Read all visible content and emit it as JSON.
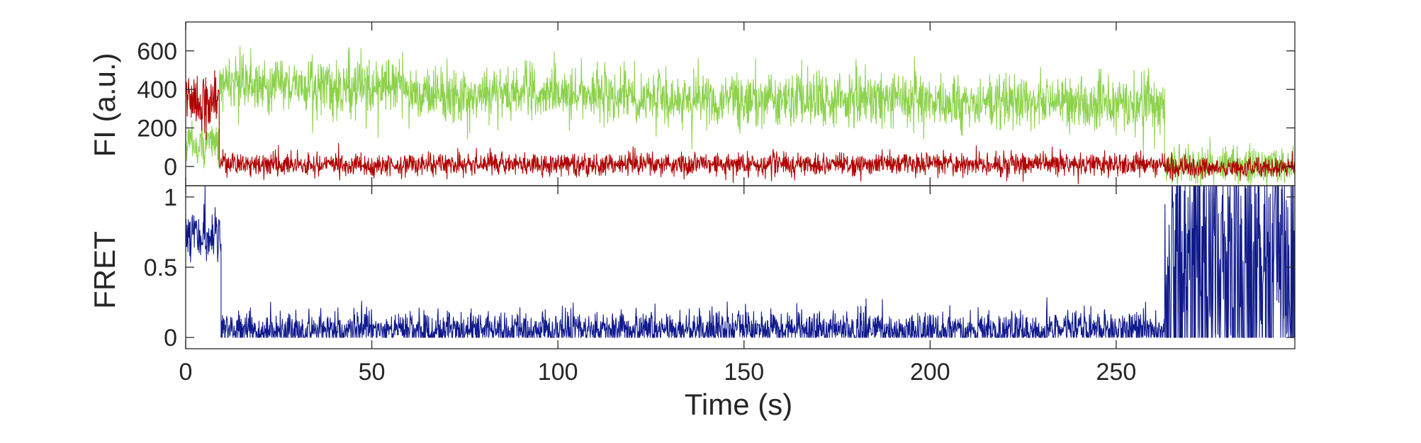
{
  "chart_data": [
    {
      "type": "line",
      "title": "",
      "xlabel": "",
      "ylabel": "FI (a.u.)",
      "xlim": [
        0,
        298
      ],
      "ylim": [
        -100,
        750
      ],
      "xticks": [
        0,
        50,
        100,
        150,
        200,
        250
      ],
      "yticks": [
        0,
        200,
        400,
        600
      ],
      "ytick_labels": [
        "0",
        "200",
        "400",
        "600"
      ],
      "grid": false,
      "legend": "none",
      "series": [
        {
          "color": "#8CD24B",
          "segments": [
            {
              "x": [
                0,
                9
              ],
              "mean": 120,
              "noise": 55
            },
            {
              "x": [
                9,
                30
              ],
              "mean": 430,
              "noise": 75
            },
            {
              "x": [
                30,
                60
              ],
              "mean": 410,
              "noise": 70
            },
            {
              "x": [
                60,
                120
              ],
              "mean": 375,
              "noise": 70
            },
            {
              "x": [
                120,
                200
              ],
              "mean": 345,
              "noise": 70
            },
            {
              "x": [
                200,
                263
              ],
              "mean": 330,
              "noise": 70
            },
            {
              "x": [
                263,
                298
              ],
              "mean": 10,
              "noise": 45
            }
          ]
        },
        {
          "color": "#B00000",
          "segments": [
            {
              "x": [
                0,
                9
              ],
              "mean": 330,
              "noise": 70
            },
            {
              "x": [
                9,
                263
              ],
              "mean": 10,
              "noise": 30
            },
            {
              "x": [
                263,
                298
              ],
              "mean": -5,
              "noise": 28
            }
          ]
        }
      ]
    },
    {
      "type": "line",
      "title": "",
      "xlabel": "Time (s)",
      "ylabel": "FRET",
      "xlim": [
        0,
        298
      ],
      "ylim": [
        -0.08,
        1.08
      ],
      "xticks": [
        0,
        50,
        100,
        150,
        200,
        250
      ],
      "xtick_labels": [
        "0",
        "50",
        "100",
        "150",
        "200",
        "250"
      ],
      "yticks": [
        0,
        0.5,
        1
      ],
      "ytick_labels": [
        "0",
        "0.5",
        "1"
      ],
      "grid": false,
      "legend": "none",
      "series": [
        {
          "color": "#101A8C",
          "segments": [
            {
              "x": [
                0,
                9.5
              ],
              "mean": 0.72,
              "noise": 0.09
            },
            {
              "x": [
                9.5,
                263
              ],
              "mean": 0.05,
              "noise": 0.07
            },
            {
              "x": [
                263,
                298
              ],
              "mean": 0.5,
              "noise": 0.7
            }
          ]
        }
      ]
    }
  ]
}
